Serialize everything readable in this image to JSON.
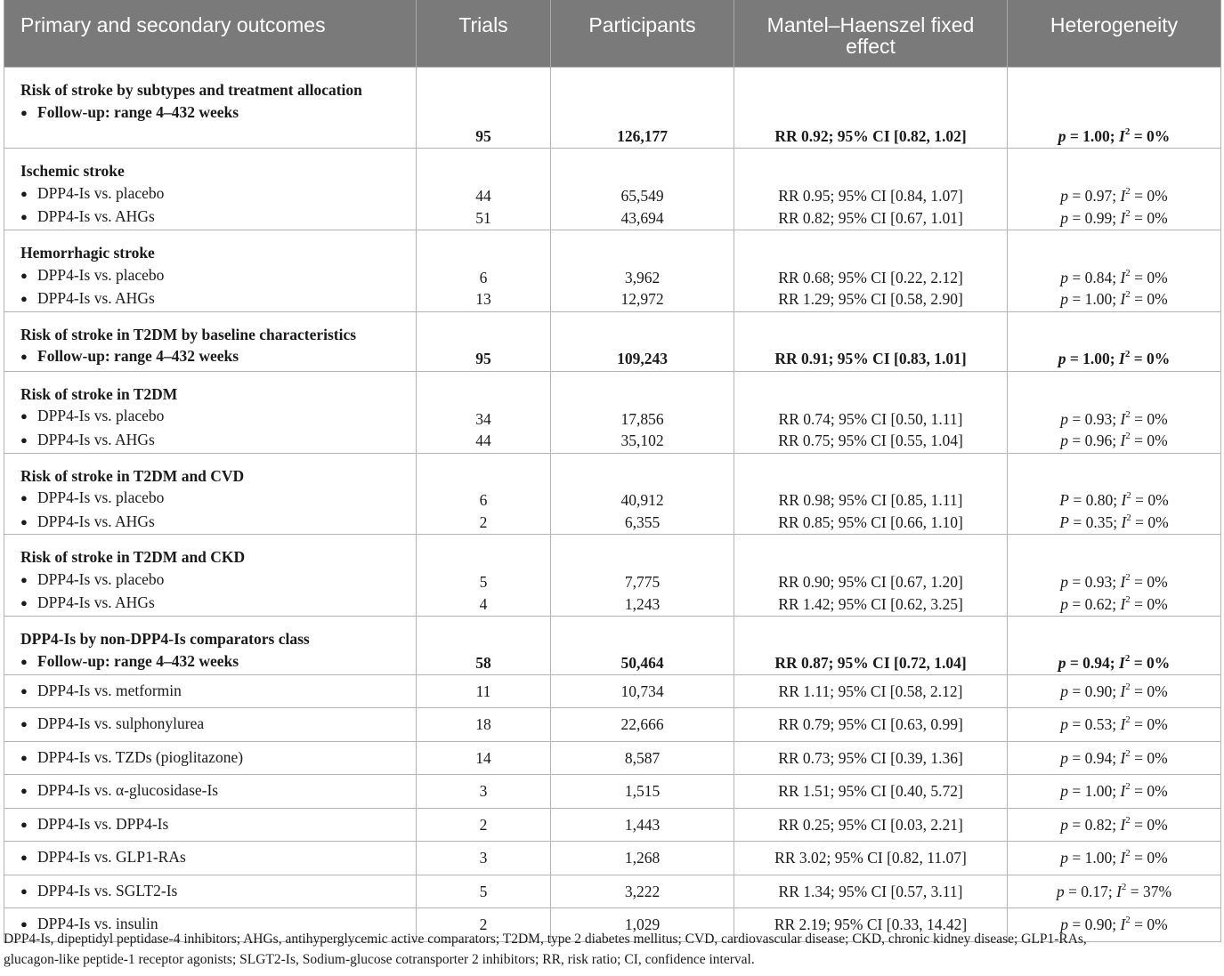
{
  "header": {
    "outcomes": "Primary and secondary outcomes",
    "trials": "Trials",
    "participants": "Participants",
    "mh_line1": "Mantel–Haenszel fixed",
    "mh_line2": "effect",
    "heterogeneity": "Heterogeneity"
  },
  "rows": {
    "r1": {
      "title": "Risk of stroke by subtypes and treatment allocation",
      "sub": "Follow-up: range 4–432 weeks",
      "trials": "95",
      "participants": "126,177",
      "effect": "RR 0.92; 95% CI [0.82, 1.02]",
      "p": "p",
      "p_val": " = 1.00; ",
      "i": "I",
      "i2": "2",
      "i_val": " = 0%"
    },
    "r2": {
      "title": "Ischemic stroke",
      "a": {
        "label": "DPP4-Is vs. placebo",
        "trials": "44",
        "participants": "65,549",
        "effect": "RR 0.95; 95% CI [0.84, 1.07]",
        "p": "p",
        "p_val": " = 0.97; ",
        "i": "I",
        "i2": "2",
        "i_val": " = 0%"
      },
      "b": {
        "label": "DPP4-Is vs. AHGs",
        "trials": "51",
        "participants": "43,694",
        "effect": "RR 0.82; 95% CI [0.67, 1.01]",
        "p": "p",
        "p_val": " = 0.99; ",
        "i": "I",
        "i2": "2",
        "i_val": " = 0%"
      }
    },
    "r3": {
      "title": "Hemorrhagic stroke",
      "a": {
        "label": "DPP4-Is vs. placebo",
        "trials": "6",
        "participants": "3,962",
        "effect": "RR 0.68; 95% CI [0.22, 2.12]",
        "p": "p",
        "p_val": " = 0.84; ",
        "i": "I",
        "i2": "2",
        "i_val": " = 0%"
      },
      "b": {
        "label": "DPP4-Is vs. AHGs",
        "trials": "13",
        "participants": "12,972",
        "effect": "RR 1.29; 95% CI [0.58, 2.90]",
        "p": "p",
        "p_val": " = 1.00; ",
        "i": "I",
        "i2": "2",
        "i_val": " = 0%"
      }
    },
    "r4": {
      "title": "Risk of stroke in T2DM by baseline characteristics",
      "sub": "Follow-up: range 4–432 weeks",
      "trials": "95",
      "participants": "109,243",
      "effect": "RR 0.91; 95% CI [0.83, 1.01]",
      "p": "p",
      "p_val": " = 1.00; ",
      "i": "I",
      "i2": "2",
      "i_val": " = 0%"
    },
    "r5": {
      "title": "Risk of stroke in T2DM",
      "a": {
        "label": "DPP4-Is vs. placebo",
        "trials": "34",
        "participants": "17,856",
        "effect": "RR 0.74; 95% CI [0.50, 1.11]",
        "p": "p",
        "p_val": " = 0.93; ",
        "i": "I",
        "i2": "2",
        "i_val": " = 0%"
      },
      "b": {
        "label": "DPP4-Is vs. AHGs",
        "trials": "44",
        "participants": "35,102",
        "effect": "RR 0.75; 95% CI [0.55, 1.04]",
        "p": "p",
        "p_val": " = 0.96; ",
        "i": "I",
        "i2": "2",
        "i_val": " = 0%"
      }
    },
    "r6": {
      "title": "Risk of stroke in T2DM and CVD",
      "a": {
        "label": "DPP4-Is vs. placebo",
        "trials": "6",
        "participants": "40,912",
        "effect": "RR 0.98; 95% CI [0.85, 1.11]",
        "p": "P",
        "p_val": " = 0.80; ",
        "i": "I",
        "i2": "2",
        "i_val": " = 0%"
      },
      "b": {
        "label": "DPP4-Is vs. AHGs",
        "trials": "2",
        "participants": "6,355",
        "effect": "RR 0.85; 95% CI [0.66, 1.10]",
        "p": "P",
        "p_val": " = 0.35; ",
        "i": "I",
        "i2": "2",
        "i_val": " = 0%"
      }
    },
    "r7": {
      "title": "Risk of stroke in T2DM and CKD",
      "a": {
        "label": "DPP4-Is vs. placebo",
        "trials": "5",
        "participants": "7,775",
        "effect": "RR 0.90; 95% CI [0.67, 1.20]",
        "p": "p",
        "p_val": " = 0.93; ",
        "i": "I",
        "i2": "2",
        "i_val": " = 0%"
      },
      "b": {
        "label": "DPP4-Is vs. AHGs",
        "trials": "4",
        "participants": "1,243",
        "effect": "RR 1.42; 95% CI [0.62, 3.25]",
        "p": "p",
        "p_val": " = 0.62; ",
        "i": "I",
        "i2": "2",
        "i_val": " = 0%"
      }
    },
    "r8": {
      "title": "DPP4-Is by non-DPP4-Is comparators class",
      "sub": "Follow-up: range 4–432 weeks",
      "trials": "58",
      "participants": "50,464",
      "effect": "RR 0.87; 95% CI [0.72, 1.04]",
      "p": "p",
      "p_val": " = 0.94; ",
      "i": "I",
      "i2": "2",
      "i_val": " = 0%"
    },
    "s1": {
      "label": "DPP4-Is vs. metformin",
      "trials": "11",
      "participants": "10,734",
      "effect": "RR 1.11; 95% CI [0.58, 2.12]",
      "p": "p",
      "p_val": " = 0.90; ",
      "i": "I",
      "i2": "2",
      "i_val": " = 0%"
    },
    "s2": {
      "label": "DPP4-Is vs. sulphonylurea",
      "trials": "18",
      "participants": "22,666",
      "effect": "RR 0.79; 95% CI [0.63, 0.99]",
      "p": "p",
      "p_val": " = 0.53; ",
      "i": "I",
      "i2": "2",
      "i_val": " = 0%"
    },
    "s3": {
      "label": "DPP4-Is vs. TZDs (pioglitazone)",
      "trials": "14",
      "participants": "8,587",
      "effect": "RR 0.73; 95% CI [0.39, 1.36]",
      "p": "p",
      "p_val": " = 0.94; ",
      "i": "I",
      "i2": "2",
      "i_val": " = 0%"
    },
    "s4": {
      "label": "DPP4-Is vs. α-glucosidase-Is",
      "trials": "3",
      "participants": "1,515",
      "effect": "RR 1.51; 95% CI [0.40, 5.72]",
      "p": "p",
      "p_val": " = 1.00; ",
      "i": "I",
      "i2": "2",
      "i_val": " = 0%"
    },
    "s5": {
      "label": "DPP4-Is vs. DPP4-Is",
      "trials": "2",
      "participants": "1,443",
      "effect": "RR 0.25; 95% CI [0.03, 2.21]",
      "p": "p",
      "p_val": " = 0.82; ",
      "i": "I",
      "i2": "2",
      "i_val": " = 0%"
    },
    "s6": {
      "label": "DPP4-Is vs. GLP1-RAs",
      "trials": "3",
      "participants": "1,268",
      "effect": "RR 3.02; 95% CI [0.82, 11.07]",
      "p": "p",
      "p_val": " = 1.00; ",
      "i": "I",
      "i2": "2",
      "i_val": " = 0%"
    },
    "s7": {
      "label": "DPP4-Is vs. SGLT2-Is",
      "trials": "5",
      "participants": "3,222",
      "effect": "RR 1.34; 95% CI [0.57, 3.11]",
      "p": "p",
      "p_val": " = 0.17; ",
      "i": "I",
      "i2": "2",
      "i_val": " = 37%"
    },
    "s8": {
      "label": "DPP4-Is vs. insulin",
      "trials": "2",
      "participants": "1,029",
      "effect": "RR 2.19; 95% CI [0.33, 14.42]",
      "p": "p",
      "p_val": " = 0.90; ",
      "i": "I",
      "i2": "2",
      "i_val": " = 0%"
    }
  },
  "bullet_glyph": "●",
  "footnote_line1": "DPP4-Is, dipeptidyl peptidase-4 inhibitors; AHGs, antihyperglycemic active comparators; T2DM, type 2 diabetes mellitus; CVD, cardiovascular disease; CKD, chronic kidney disease; GLP1-RAs,",
  "footnote_line2": "glucagon-like peptide-1 receptor agonists; SLGT2-Is, Sodium-glucose cotransporter 2 inhibitors; RR, risk ratio; CI, confidence interval.",
  "colors": {
    "header_bg": "#7a7a7a",
    "header_text": "#ffffff",
    "border": "#b4b4b4",
    "text": "#1a1a1a"
  }
}
